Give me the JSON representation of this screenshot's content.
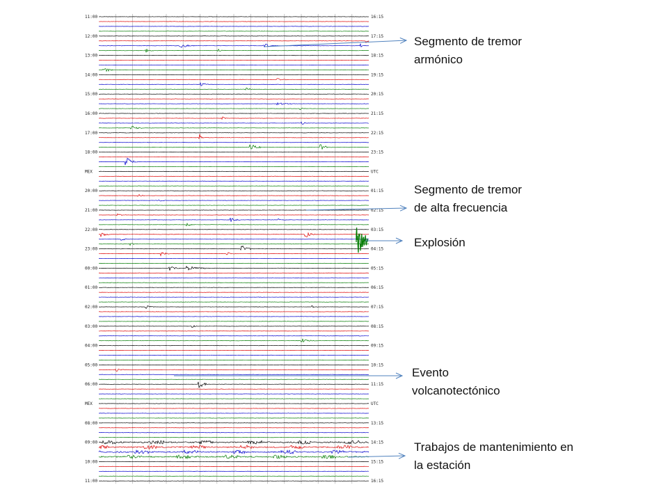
{
  "seismogram": {
    "left_time_labels": [
      "11:00",
      "",
      "12:00",
      "",
      "13:00",
      "",
      "14:00",
      "",
      "15:00",
      "",
      "16:00",
      "",
      "17:00",
      "",
      "18:00",
      "",
      "MEX",
      "",
      "20:00",
      "",
      "21:00",
      "",
      "22:00",
      "",
      "23:00",
      "",
      "00:00",
      "",
      "01:00",
      "",
      "02:00",
      "",
      "03:00",
      "",
      "04:00",
      "",
      "05:00",
      "",
      "06:00",
      "",
      "MEX",
      "",
      "08:00",
      "",
      "09:00",
      "",
      "10:00",
      "",
      "11:00"
    ],
    "right_time_labels": [
      "16:15",
      "",
      "17:15",
      "",
      "18:15",
      "",
      "19:15",
      "",
      "20:15",
      "",
      "21:15",
      "",
      "22:15",
      "",
      "23:15",
      "",
      "UTC",
      "",
      "01:15",
      "",
      "02:15",
      "",
      "03:15",
      "",
      "04:15",
      "",
      "05:15",
      "",
      "06:15",
      "",
      "07:15",
      "",
      "08:15",
      "",
      "09:15",
      "",
      "10:15",
      "",
      "11:15",
      "",
      "UTC",
      "",
      "13:15",
      "",
      "14:15",
      "",
      "15:15",
      "",
      "16:15"
    ],
    "trace_colors": [
      "#000000",
      "#dd0000",
      "#0000cc",
      "#007a00"
    ],
    "arrow_color": "#4f81bd"
  },
  "annotations": [
    {
      "id": "tremor-armonico",
      "lines": [
        "Segmento de tremor",
        "armónico"
      ]
    },
    {
      "id": "tremor-alta-frecuencia",
      "lines": [
        "Segmento de tremor",
        "de alta frecuencia"
      ]
    },
    {
      "id": "explosion",
      "lines": [
        "Explosión"
      ]
    },
    {
      "id": "volcanotectonico",
      "lines": [
        "Evento",
        "volcanotectónico"
      ]
    },
    {
      "id": "mantenimiento",
      "lines": [
        "Trabajos de mantenimiento en",
        "la estación"
      ]
    }
  ]
}
